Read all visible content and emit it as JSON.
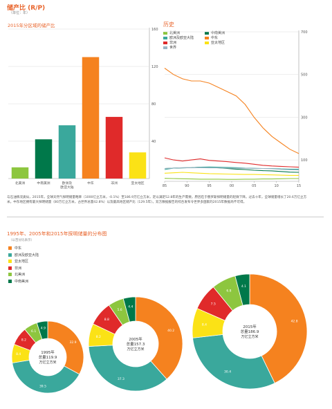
{
  "header": {
    "title": "储产比 (R/P)",
    "unit": "（单位：年）"
  },
  "footnote": "与石油情况类似，2015年，全球天然气探明储量略降（1000亿立方米，-0.1%）至186.9万亿立方米，足以满足52.8年的生产需要。原因在于俄罗斯探明储量的轻微下降。过去十年，全球储量增长了20.6万亿立方米。中东地区拥有最大探明储量（80万亿立方米，占世界总量42.8%）以及最高地区储产比（129.5年）。双方数据报告的综合发布令世界多国家的2015年数据尚不可得。",
  "colors": {
    "north_america": "#8dc63f",
    "central_south_america": "#00784a",
    "europe_eurasia": "#3aa89c",
    "middle_east": "#f5821f",
    "africa": "#e02a2a",
    "asia_pacific": "#fbe216",
    "world": "#9bb4c4"
  },
  "chart_data": [
    {
      "type": "bar",
      "title": "2015年分区域的储产比",
      "categories": [
        "北美洲",
        "中南美洲",
        "欧洲及欧亚大陆",
        "中东",
        "非洲",
        "亚太地区"
      ],
      "category_lines": [
        [
          "北美洲"
        ],
        [
          "中南美洲"
        ],
        [
          "欧洲及",
          "欧亚大陆"
        ],
        [
          "中东"
        ],
        [
          "非洲"
        ],
        [
          "亚太地区"
        ]
      ],
      "colors": [
        "#8dc63f",
        "#00784a",
        "#3aa89c",
        "#f5821f",
        "#e02a2a",
        "#fbe216"
      ],
      "values": [
        12,
        42,
        57,
        130,
        66,
        28
      ],
      "ylim": [
        0,
        160
      ],
      "yticks": [
        40,
        80,
        120,
        160
      ],
      "ytick_labels": [
        "40",
        "80",
        "120",
        "160"
      ],
      "grid": true
    },
    {
      "type": "line",
      "title": "历史",
      "x": [
        1985,
        1987,
        1989,
        1991,
        1993,
        1995,
        1997,
        1999,
        2001,
        2003,
        2005,
        2007,
        2009,
        2011,
        2013,
        2015
      ],
      "xticks": [
        1985,
        1990,
        1995,
        2000,
        2005,
        2010,
        2015
      ],
      "xtick_labels": [
        "85",
        "90",
        "95",
        "00",
        "05",
        "10",
        "15"
      ],
      "ylim": [
        0,
        700
      ],
      "yticks": [
        100,
        300,
        500,
        700
      ],
      "ytick_labels": [
        "100",
        "300",
        "500",
        "700"
      ],
      "series": [
        {
          "name": "北美洲",
          "color": "#8dc63f",
          "values": [
            14,
            13,
            12,
            11,
            10,
            10,
            10,
            9,
            9,
            10,
            10,
            11,
            11,
            12,
            13,
            13
          ]
        },
        {
          "name": "中南美洲",
          "color": "#00784a",
          "values": [
            60,
            62,
            63,
            64,
            66,
            65,
            63,
            60,
            57,
            55,
            52,
            50,
            49,
            46,
            43,
            42
          ]
        },
        {
          "name": "欧洲及欧亚大陆",
          "color": "#3aa89c",
          "values": [
            55,
            62,
            63,
            64,
            66,
            67,
            66,
            65,
            64,
            62,
            61,
            60,
            60,
            58,
            57,
            57
          ]
        },
        {
          "name": "中东",
          "color": "#f5821f",
          "values": [
            530,
            500,
            480,
            470,
            470,
            460,
            440,
            420,
            400,
            360,
            300,
            250,
            210,
            180,
            150,
            130
          ]
        },
        {
          "name": "非洲",
          "color": "#e02a2a",
          "values": [
            110,
            100,
            95,
            100,
            105,
            98,
            95,
            92,
            88,
            85,
            80,
            75,
            72,
            70,
            68,
            66
          ]
        },
        {
          "name": "亚太地区",
          "color": "#fbe216",
          "values": [
            38,
            40,
            42,
            40,
            38,
            36,
            35,
            34,
            33,
            32,
            32,
            31,
            30,
            29,
            28,
            28
          ]
        },
        {
          "name": "世界",
          "color": "#9bb4c4",
          "values": [
            60,
            62,
            64,
            64,
            64,
            63,
            63,
            62,
            61,
            61,
            60,
            60,
            59,
            56,
            54,
            53
          ]
        }
      ]
    },
    {
      "type": "pie",
      "title": "1995年、2005年和2015年探明储量的分布图",
      "unit": "（以百分比表示）",
      "legend": [
        {
          "name": "中东",
          "color": "#f5821f"
        },
        {
          "name": "欧洲及欧亚大陆",
          "color": "#3aa89c"
        },
        {
          "name": "亚太地区",
          "color": "#fbe216"
        },
        {
          "name": "非洲",
          "color": "#e02a2a"
        },
        {
          "name": "北美洲",
          "color": "#8dc63f"
        },
        {
          "name": "中南美洲",
          "color": "#00784a"
        }
      ],
      "donuts": [
        {
          "year": "1995年",
          "total": "总量119.9",
          "unit": "万亿立方米",
          "values": [
            32.9,
            39.5,
            8.4,
            8.2,
            6.1,
            4.9
          ],
          "labels": [
            "32.9",
            "39.5",
            "8.4",
            "8.2",
            "6.1",
            "4.9"
          ]
        },
        {
          "year": "2005年",
          "total": "总量157.3",
          "unit": "万亿立方米",
          "values": [
            40.2,
            37.3,
            8.2,
            8.8,
            5.6,
            4.4
          ],
          "labels": [
            "40.2",
            "37.3",
            "8.2",
            "8.8",
            "5.6",
            "4.4"
          ]
        },
        {
          "year": "2015年",
          "total": "总量186.9",
          "unit": "万亿立方米",
          "values": [
            42.8,
            30.4,
            8.4,
            7.5,
            6.8,
            4.1
          ],
          "labels": [
            "42.8",
            "30.4",
            "8.4",
            "7.5",
            "6.8",
            "4.1"
          ]
        }
      ]
    }
  ]
}
